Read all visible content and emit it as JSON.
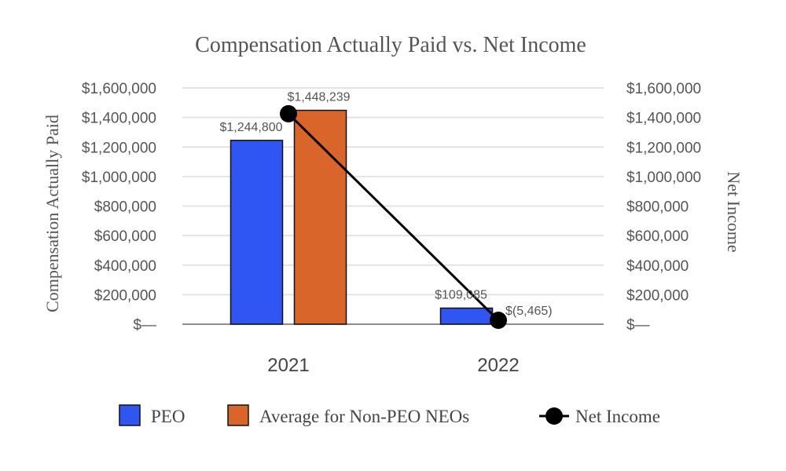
{
  "chart_data": {
    "type": "bar",
    "title": "Compensation Actually Paid vs. Net Income",
    "categories": [
      "2021",
      "2022"
    ],
    "ylabel": "Compensation Actually Paid",
    "y2label": "Net Income",
    "ylim": [
      0,
      1600000
    ],
    "y2lim": [
      0,
      1600000
    ],
    "yticks": [
      "$—",
      "$200,000",
      "$400,000",
      "$600,000",
      "$800,000",
      "$1,000,000",
      "$1,200,000",
      "$1,400,000",
      "$1,600,000"
    ],
    "grid": true,
    "legend_position": "bottom",
    "series": [
      {
        "name": "PEO",
        "type": "bar",
        "axis": "left",
        "color": "#2f55f2",
        "values": [
          1244800,
          109085
        ],
        "labels": [
          "$1,244,800",
          "$109,085"
        ]
      },
      {
        "name": "Average for Non-PEO NEOs",
        "type": "bar",
        "axis": "left",
        "color": "#d9652b",
        "values": [
          1448239,
          null
        ],
        "labels": [
          "$1,448,239",
          ""
        ]
      },
      {
        "name": "Net Income",
        "type": "line",
        "axis": "right",
        "color": "#000000",
        "values": [
          1425000,
          -5465
        ],
        "labels": [
          "",
          "$(5,465)"
        ]
      }
    ]
  }
}
